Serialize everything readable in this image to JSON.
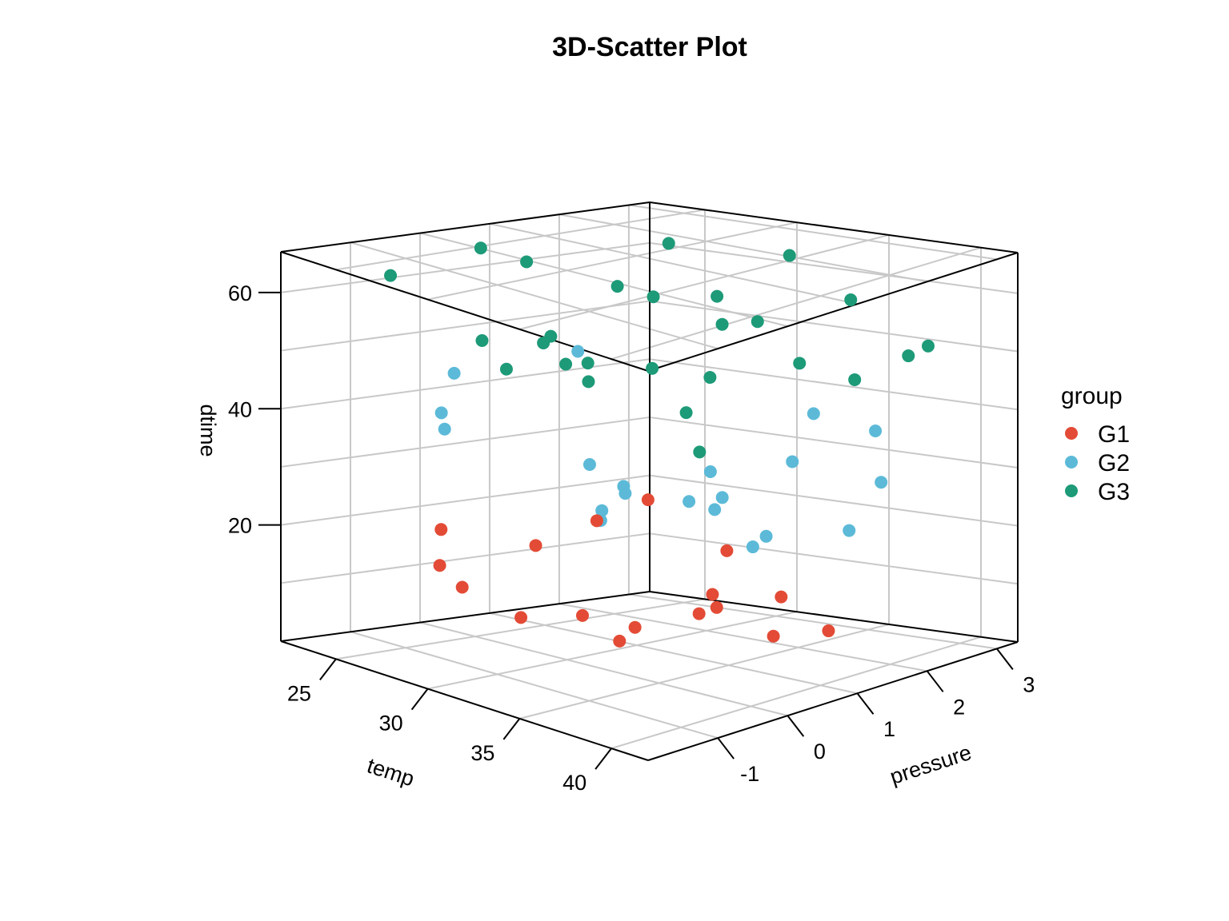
{
  "chart_data": {
    "type": "scatter",
    "title": "3D-Scatter Plot",
    "axes": {
      "x": {
        "label": "temp",
        "ticks": [
          25,
          30,
          35,
          40
        ],
        "range": [
          22,
          42
        ]
      },
      "y": {
        "label": "pressure",
        "ticks": [
          -1,
          0,
          1,
          2,
          3
        ],
        "range": [
          -2,
          3.3
        ]
      },
      "z": {
        "label": "dtime",
        "ticks": [
          20,
          40,
          60
        ],
        "range": [
          0,
          67
        ]
      }
    },
    "grid": true,
    "legend": {
      "title": "group",
      "position": "right"
    },
    "series": [
      {
        "name": "G1",
        "color": "#E34B36",
        "points": [
          {
            "temp": 23.4,
            "pressure": 2.17,
            "dtime": 14.8
          },
          {
            "temp": 32.3,
            "pressure": 1.48,
            "dtime": 9.0
          },
          {
            "temp": 23.5,
            "pressure": 0.21,
            "dtime": 6.9
          },
          {
            "temp": 36.0,
            "pressure": 1.49,
            "dtime": 10.9
          },
          {
            "temp": 28.3,
            "pressure": 0.67,
            "dtime": 4.7
          },
          {
            "temp": 32.4,
            "pressure": 0.12,
            "dtime": 4.8
          },
          {
            "temp": 35.4,
            "pressure": 0.47,
            "dtime": 10.8
          },
          {
            "temp": 29.9,
            "pressure": 2.32,
            "dtime": 12.9
          },
          {
            "temp": 24.7,
            "pressure": -0.43,
            "dtime": 12.8
          },
          {
            "temp": 27.3,
            "pressure": 0.05,
            "dtime": 5.0
          },
          {
            "temp": 37.7,
            "pressure": 0.93,
            "dtime": 7.1
          },
          {
            "temp": 39.9,
            "pressure": 1.14,
            "dtime": 8.8
          },
          {
            "temp": 35.1,
            "pressure": -0.37,
            "dtime": 10.8
          },
          {
            "temp": 25.2,
            "pressure": 2.43,
            "dtime": 18.9
          },
          {
            "temp": 23.6,
            "pressure": -0.12,
            "dtime": 17.5
          },
          {
            "temp": 22.5,
            "pressure": 1.53,
            "dtime": 11.1
          },
          {
            "temp": 33.1,
            "pressure": 1.33,
            "dtime": 7.7
          }
        ]
      },
      {
        "name": "G2",
        "color": "#5CBAD8",
        "points": [
          {
            "temp": 31.8,
            "pressure": 0.36,
            "dtime": 29.1
          },
          {
            "temp": 36.9,
            "pressure": -0.07,
            "dtime": 33.0
          },
          {
            "temp": 34.2,
            "pressure": 2.43,
            "dtime": 38.5
          },
          {
            "temp": 37.8,
            "pressure": 0.17,
            "dtime": 33.6
          },
          {
            "temp": 27.1,
            "pressure": 1.09,
            "dtime": 28.9
          },
          {
            "temp": 38.9,
            "pressure": 0.51,
            "dtime": 26.6
          },
          {
            "temp": 36.7,
            "pressure": 2.28,
            "dtime": 20.2
          },
          {
            "temp": 22.9,
            "pressure": 2.03,
            "dtime": 43.9
          },
          {
            "temp": 22.0,
            "pressure": 0.49,
            "dtime": 42.1
          },
          {
            "temp": 30.5,
            "pressure": 0.68,
            "dtime": 28.5
          },
          {
            "temp": 26.0,
            "pressure": 1.54,
            "dtime": 17.6
          },
          {
            "temp": 29.5,
            "pressure": 2.19,
            "dtime": 26.6
          },
          {
            "temp": 40.6,
            "pressure": -0.13,
            "dtime": 28.4
          },
          {
            "temp": 23.3,
            "pressure": 0.01,
            "dtime": 34.3
          },
          {
            "temp": 39.0,
            "pressure": 2.05,
            "dtime": 39.4
          },
          {
            "temp": 25.7,
            "pressure": -0.67,
            "dtime": 40.4
          },
          {
            "temp": 28.9,
            "pressure": 0.79,
            "dtime": 22.9
          },
          {
            "temp": 34.9,
            "pressure": 1.94,
            "dtime": 32.1
          },
          {
            "temp": 38.4,
            "pressure": 2.29,
            "dtime": 29.4
          },
          {
            "temp": 32.8,
            "pressure": 1.38,
            "dtime": 24.2
          }
        ]
      },
      {
        "name": "G3",
        "color": "#1D9A78",
        "points": [
          {
            "temp": 22.4,
            "pressure": -0.53,
            "dtime": 60.9
          },
          {
            "temp": 31.9,
            "pressure": -0.52,
            "dtime": 53.8
          },
          {
            "temp": 26.4,
            "pressure": 2.41,
            "dtime": 63.7
          },
          {
            "temp": 30.2,
            "pressure": 2.1,
            "dtime": 57.4
          },
          {
            "temp": 34.6,
            "pressure": 1.52,
            "dtime": 57.3
          },
          {
            "temp": 41.4,
            "pressure": 1.12,
            "dtime": 53.1
          },
          {
            "temp": 40.2,
            "pressure": 2.49,
            "dtime": 53.1
          },
          {
            "temp": 26.5,
            "pressure": 0.69,
            "dtime": 51.4
          },
          {
            "temp": 27.5,
            "pressure": 0.32,
            "dtime": 51.8
          },
          {
            "temp": 37.4,
            "pressure": -0.73,
            "dtime": 58.5
          },
          {
            "temp": 31.7,
            "pressure": 0.79,
            "dtime": 61.7
          },
          {
            "temp": 25.2,
            "pressure": 1.99,
            "dtime": 56.5
          },
          {
            "temp": 22.5,
            "pressure": 0.74,
            "dtime": 63.6
          },
          {
            "temp": 23.1,
            "pressure": 1.24,
            "dtime": 60.8
          },
          {
            "temp": 28.1,
            "pressure": 0.8,
            "dtime": 47.7
          },
          {
            "temp": 29.8,
            "pressure": 0.36,
            "dtime": 46.8
          },
          {
            "temp": 31.6,
            "pressure": 1.63,
            "dtime": 45.5
          },
          {
            "temp": 32.6,
            "pressure": 1.54,
            "dtime": 55.5
          },
          {
            "temp": 39.6,
            "pressure": -0.63,
            "dtime": 45.7
          },
          {
            "temp": 40.3,
            "pressure": 2.18,
            "dtime": 52.6
          },
          {
            "temp": 37.3,
            "pressure": 1.41,
            "dtime": 52.2
          },
          {
            "temp": 27.8,
            "pressure": -0.29,
            "dtime": 48.9
          },
          {
            "temp": 33.6,
            "pressure": 0.76,
            "dtime": 43.2
          },
          {
            "temp": 24.2,
            "pressure": 0.31,
            "dtime": 49.7
          },
          {
            "temp": 38.0,
            "pressure": 1.96,
            "dtime": 61.7
          },
          {
            "temp": 32.4,
            "pressure": 2.56,
            "dtime": 64.4
          }
        ]
      }
    ]
  }
}
